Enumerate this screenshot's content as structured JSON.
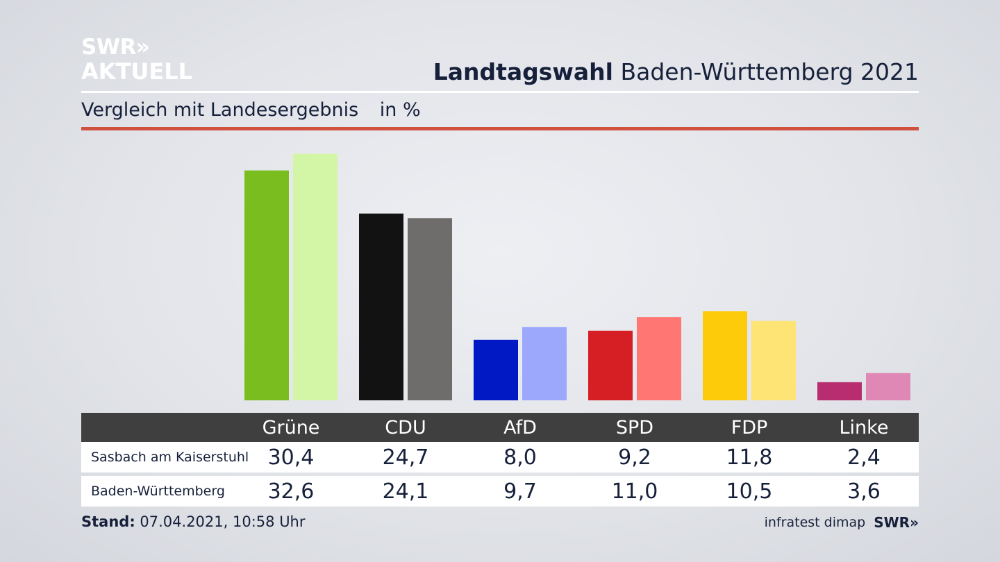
{
  "logo": {
    "line1": "SWR»",
    "line2": "AKTUELL"
  },
  "header": {
    "title_bold": "Landtagswahl",
    "title_rest": "Baden-Württemberg 2021"
  },
  "subtitle": {
    "text": "Vergleich mit Landesergebnis",
    "unit": "in %"
  },
  "chart_data": {
    "type": "bar",
    "categories": [
      "Grüne",
      "CDU",
      "AfD",
      "SPD",
      "FDP",
      "Linke"
    ],
    "series": [
      {
        "name": "Sasbach am Kaiserstuhl",
        "values": [
          30.4,
          24.7,
          8.0,
          9.2,
          11.8,
          2.4
        ]
      },
      {
        "name": "Baden-Württemberg",
        "values": [
          32.6,
          24.1,
          9.7,
          11.0,
          10.5,
          3.6
        ]
      }
    ],
    "colors_primary": [
      "#79bd1e",
      "#121212",
      "#0019c4",
      "#d61f25",
      "#fecb0a",
      "#b82d70"
    ],
    "colors_secondary": [
      "#d3f5a6",
      "#6f6d6b",
      "#9ca8fc",
      "#ff7672",
      "#fee375",
      "#df88b6"
    ],
    "display_primary": [
      "30,4",
      "24,7",
      "8,0",
      "9,2",
      "11,8",
      "2,4"
    ],
    "display_secondary": [
      "32,6",
      "24,1",
      "9,7",
      "11,0",
      "10,5",
      "3,6"
    ],
    "ylim": [
      0,
      33.5
    ],
    "grid": false,
    "legend": "none"
  },
  "footer": {
    "stand_label": "Stand:",
    "stand_value": "07.04.2021, 10:58 Uhr",
    "source": "infratest dimap",
    "brand": "SWR»"
  }
}
